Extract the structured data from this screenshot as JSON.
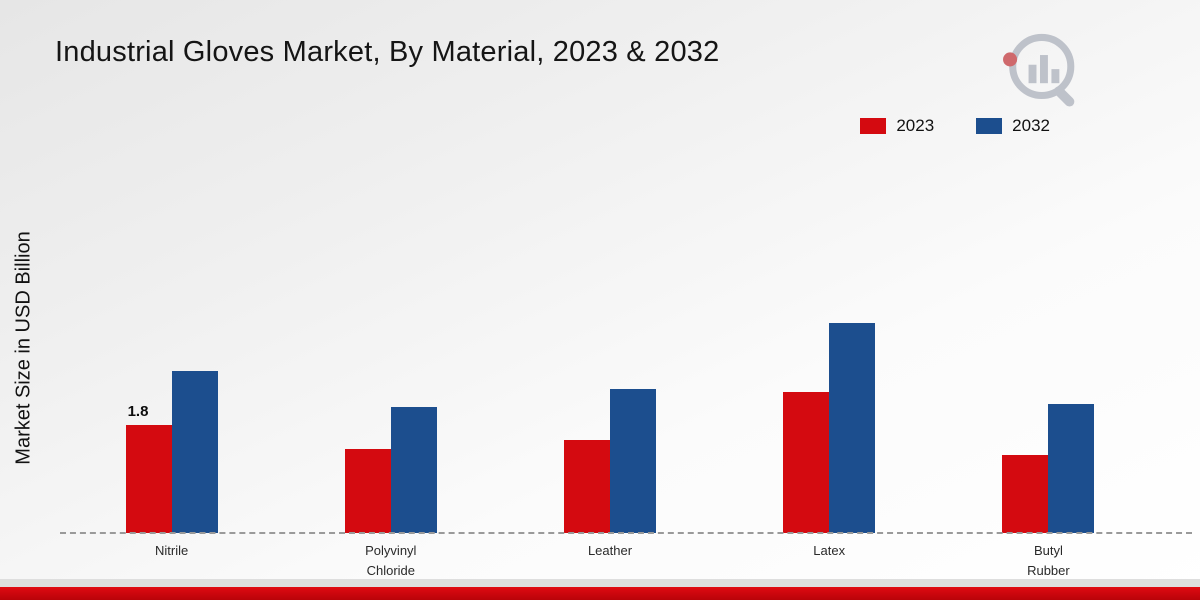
{
  "page": {
    "title": "Industrial Gloves Market, By Material, 2023 & 2032",
    "y_axis_label": "Market Size in USD Billion"
  },
  "branding": {
    "logo_name": "market-research-chart-logo"
  },
  "chart_data": {
    "type": "bar",
    "title": "Industrial Gloves Market, By Material, 2023 & 2032",
    "xlabel": "",
    "ylabel": "Market Size in USD Billion",
    "categories": [
      "Nitrile",
      "Polyvinyl Chloride",
      "Leather",
      "Latex",
      "Butyl Rubber"
    ],
    "series": [
      {
        "name": "2023",
        "color": "#d40a10",
        "values": [
          1.8,
          1.4,
          1.55,
          2.35,
          1.3
        ]
      },
      {
        "name": "2032",
        "color": "#1c4e8e",
        "values": [
          2.7,
          2.1,
          2.4,
          3.5,
          2.15
        ]
      }
    ],
    "annotations": [
      {
        "series_index": 0,
        "category_index": 0,
        "text": "1.8"
      }
    ],
    "ylim": [
      0,
      4
    ],
    "grid": false,
    "baseline_style": "dashed",
    "legend_position": "top-right",
    "accent_footer_color": "#c00309"
  }
}
